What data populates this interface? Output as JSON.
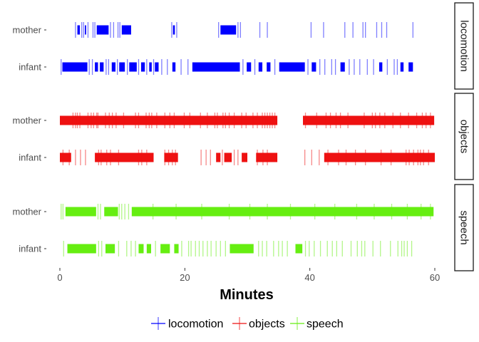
{
  "chart_data": {
    "type": "event-raster",
    "xlabel": "Minutes",
    "xlim": [
      0,
      60
    ],
    "x_ticks": [
      "0",
      "20",
      "40",
      "60"
    ],
    "legend_position": "bottom",
    "colors": {
      "locomotion": "#0000ff",
      "objects": "#ee1111",
      "speech": "#66ee11"
    },
    "panels": [
      {
        "label": "locomotion",
        "series": "locomotion",
        "rows": [
          {
            "label": "mother",
            "bouts": [
              [
                2.8,
                3.2
              ],
              [
                4.0,
                4.2
              ],
              [
                5.9,
                7.8
              ],
              [
                9.9,
                11.4
              ],
              [
                18.1,
                18.4
              ],
              [
                25.7,
                28.2
              ]
            ],
            "events": [
              2.5,
              3.5,
              3.8,
              4.5,
              5.3,
              5.6,
              8.1,
              8.6,
              9.3,
              9.6,
              17.9,
              18.7,
              25.4,
              28.5,
              28.9,
              32.0,
              33.2,
              40.2,
              42.2,
              45.6,
              46.9,
              48.5,
              48.9,
              50.7,
              51.5,
              52.3,
              56.5
            ]
          },
          {
            "label": "infant",
            "bouts": [
              [
                0.4,
                4.4
              ],
              [
                5.6,
                6.1
              ],
              [
                6.4,
                7.0
              ],
              [
                8.3,
                8.9
              ],
              [
                9.5,
                10.4
              ],
              [
                11.1,
                12.3
              ],
              [
                13.0,
                13.6
              ],
              [
                14.3,
                14.7
              ],
              [
                15.2,
                15.8
              ],
              [
                18.0,
                18.5
              ],
              [
                21.2,
                28.8
              ],
              [
                29.9,
                30.6
              ],
              [
                31.8,
                32.4
              ],
              [
                33.1,
                33.7
              ],
              [
                35.1,
                39.2
              ],
              [
                40.3,
                41.0
              ],
              [
                44.9,
                45.6
              ],
              [
                51.1,
                51.6
              ],
              [
                54.5,
                55.0
              ],
              [
                55.8,
                56.5
              ]
            ],
            "events": [
              0.2,
              4.7,
              5.2,
              7.4,
              7.8,
              9.2,
              10.8,
              12.6,
              13.9,
              15.0,
              16.3,
              17.2,
              19.4,
              20.5,
              29.3,
              31.2,
              34.4,
              39.7,
              41.6,
              42.4,
              43.5,
              44.1,
              46.3,
              47.1,
              48.0,
              49.2,
              50.2,
              52.4,
              53.5,
              54.0
            ]
          }
        ]
      },
      {
        "label": "objects",
        "series": "objects",
        "rows": [
          {
            "label": "mother",
            "bouts": [
              [
                0.0,
                34.8
              ],
              [
                38.9,
                59.9
              ]
            ],
            "events": [
              2.1,
              2.5,
              2.8,
              3.2,
              4.5,
              5.0,
              5.4,
              5.9,
              6.1,
              7.3,
              7.9,
              8.4,
              9.0,
              10.2,
              12.1,
              12.6,
              13.8,
              14.3,
              14.7,
              15.5,
              16.8,
              17.6,
              18.3,
              19.9,
              20.8,
              22.5,
              23.6,
              24.8,
              25.2,
              26.1,
              26.5,
              27.1,
              27.9,
              29.1,
              29.8,
              30.9,
              31.6,
              32.4,
              32.8,
              33.2,
              33.6,
              34.0,
              34.4,
              39.3,
              41.1,
              42.6,
              43.3,
              44.2,
              44.9,
              46.1,
              48.7,
              50.0,
              50.5,
              51.2,
              52.0,
              53.3,
              54.5,
              55.8,
              57.1,
              58.0,
              58.6,
              59.3
            ]
          },
          {
            "label": "infant",
            "bouts": [
              [
                0.0,
                1.8
              ],
              [
                5.6,
                15.0
              ],
              [
                16.7,
                18.9
              ],
              [
                25.0,
                25.7
              ],
              [
                26.3,
                27.5
              ],
              [
                29.1,
                30.0
              ],
              [
                31.4,
                34.8
              ],
              [
                42.3,
                60.0
              ]
            ],
            "events": [
              0.5,
              1.5,
              2.5,
              3.3,
              4.1,
              6.2,
              6.6,
              7.5,
              8.1,
              9.4,
              12.6,
              13.1,
              13.9,
              16.8,
              17.4,
              18.0,
              18.5,
              22.6,
              23.4,
              24.1,
              26.0,
              27.9,
              28.5,
              31.6,
              32.5,
              33.2,
              39.2,
              40.3,
              41.5,
              42.9,
              44.6,
              45.8,
              47.3,
              48.9,
              51.4,
              53.0,
              55.4,
              55.9,
              56.6,
              57.3,
              57.7,
              58.2,
              59.0
            ]
          }
        ]
      },
      {
        "label": "speech",
        "series": "speech",
        "rows": [
          {
            "label": "mother",
            "bouts": [
              [
                0.9,
                5.8
              ],
              [
                7.1,
                9.3
              ],
              [
                11.5,
                59.8
              ]
            ],
            "events": [
              0.2,
              0.5,
              6.1,
              6.5,
              9.5,
              9.9,
              10.4,
              11.0,
              14.9,
              18.6,
              22.7,
              27.1,
              30.4,
              33.2,
              36.9,
              40.8,
              44.0,
              47.5,
              50.3,
              53.1,
              55.6,
              57.8,
              59.3
            ]
          },
          {
            "label": "infant",
            "bouts": [
              [
                1.2,
                5.8
              ],
              [
                7.3,
                8.8
              ],
              [
                12.6,
                13.4
              ],
              [
                13.9,
                14.6
              ],
              [
                16.1,
                17.6
              ],
              [
                18.3,
                19.0
              ],
              [
                27.2,
                31.0
              ],
              [
                37.7,
                38.8
              ]
            ],
            "events": [
              0.6,
              6.2,
              6.7,
              9.4,
              10.7,
              11.4,
              12.1,
              15.3,
              19.5,
              20.6,
              21.0,
              21.7,
              22.3,
              22.9,
              23.6,
              24.2,
              25.0,
              25.7,
              26.5,
              31.8,
              32.4,
              33.1,
              34.2,
              35.0,
              35.6,
              36.4,
              39.3,
              39.9,
              40.7,
              41.7,
              42.8,
              43.6,
              44.3,
              45.2,
              46.6,
              47.6,
              48.3,
              48.8,
              50.1,
              51.3,
              52.9,
              54.1,
              54.7,
              55.1,
              55.6,
              56.3
            ]
          }
        ]
      }
    ],
    "legend": [
      {
        "label": "locomotion",
        "series": "locomotion"
      },
      {
        "label": "objects",
        "series": "objects"
      },
      {
        "label": "speech",
        "series": "speech"
      }
    ]
  }
}
